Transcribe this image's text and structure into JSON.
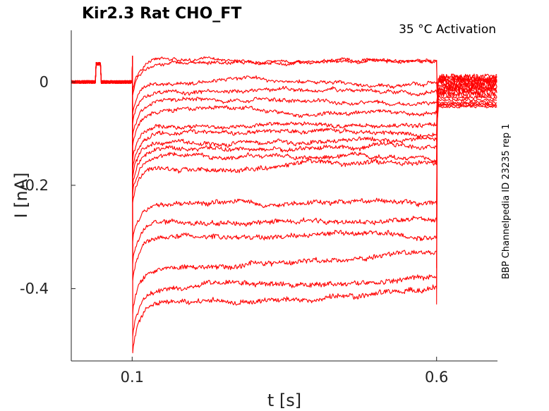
{
  "chart_data": {
    "type": "line",
    "title": "Kir2.3  Rat  CHO_FT",
    "subtitle": "35 °C  Activation",
    "side_label": "BBP Channelpedia ID 23235 rep 1",
    "xlabel": "t [s]",
    "ylabel": "I [nA]",
    "xlim": [
      0.0,
      0.7
    ],
    "ylim": [
      -0.54,
      0.1
    ],
    "xticks": [
      0.1,
      0.6
    ],
    "xtick_labels": [
      "0.1",
      "0.6"
    ],
    "yticks": [
      0,
      -0.2,
      -0.4
    ],
    "ytick_labels": [
      "0",
      "-0.2",
      "-0.4"
    ],
    "grid": false,
    "line_color": "#ff0000",
    "pulse_start": 0.1,
    "pulse_end": 0.6,
    "prepulse": {
      "start": 0.04,
      "end": 0.048,
      "value": 0.035
    },
    "baseline": 0.0,
    "series": [
      {
        "step": 0.042,
        "tail": 0.01
      },
      {
        "step": 0.035,
        "tail": 0.008
      },
      {
        "step": 0.0,
        "tail": 0.005
      },
      {
        "step": -0.018,
        "tail": 0.003
      },
      {
        "step": -0.04,
        "tail": 0.0
      },
      {
        "step": -0.058,
        "tail": -0.003
      },
      {
        "step": -0.085,
        "tail": -0.006
      },
      {
        "step": -0.1,
        "tail": -0.01
      },
      {
        "step": -0.115,
        "tail": -0.013
      },
      {
        "step": -0.13,
        "tail": -0.016
      },
      {
        "step": -0.145,
        "tail": -0.02
      },
      {
        "step": -0.16,
        "tail": -0.025
      },
      {
        "step": -0.23,
        "tail": -0.03
      },
      {
        "step": -0.27,
        "tail": -0.035
      },
      {
        "step": -0.3,
        "tail": -0.04
      },
      {
        "step": -0.36,
        "tail": -0.043
      },
      {
        "step": -0.4,
        "tail": -0.045
      },
      {
        "step": -0.43,
        "tail": -0.048
      }
    ]
  }
}
